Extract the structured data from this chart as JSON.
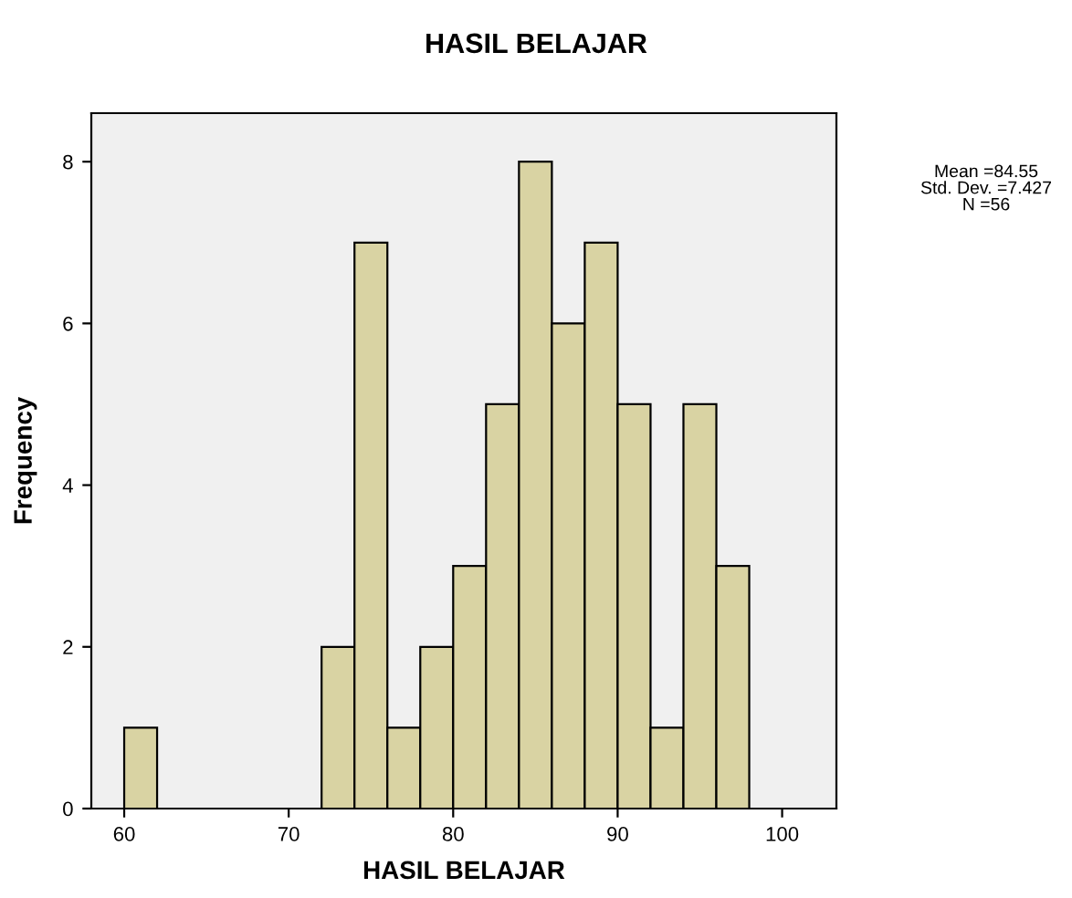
{
  "chart_data": {
    "type": "histogram",
    "title": "HASIL BELAJAR",
    "xlabel": "HASIL BELAJAR",
    "ylabel": "Frequency",
    "bins": [
      60,
      62,
      64,
      66,
      68,
      70,
      72,
      74,
      76,
      78,
      80,
      82,
      84,
      86,
      88,
      90,
      92,
      94,
      96,
      98
    ],
    "values": [
      1,
      0,
      0,
      0,
      0,
      0,
      2,
      7,
      1,
      2,
      3,
      5,
      8,
      6,
      7,
      5,
      1,
      5,
      3
    ],
    "color": "#d9d3a3",
    "xlim": [
      58,
      103.3
    ],
    "xticks": [
      60,
      70,
      80,
      90,
      100
    ],
    "ylim": [
      0,
      8.6
    ],
    "yticks": [
      0,
      2,
      4,
      6,
      8
    ],
    "grid": false,
    "annotations": [
      "Mean =84.55\nStd. Dev. =7.427\nN =56"
    ]
  }
}
